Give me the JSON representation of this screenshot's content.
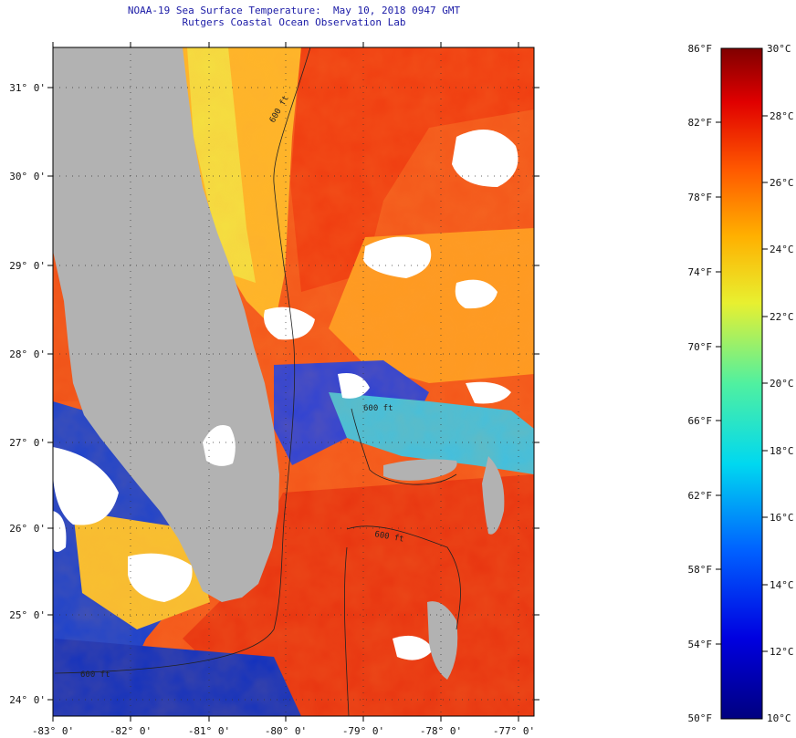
{
  "header": {
    "title_line1": "NOAA-19 Sea Surface Temperature:  May 10, 2018 0947 GMT",
    "title_line2": "Rutgers Coastal Ocean Observation Lab"
  },
  "map": {
    "lat_labels": [
      "31° 0'",
      "30° 0'",
      "29° 0'",
      "28° 0'",
      "27° 0'",
      "26° 0'",
      "25° 0'",
      "24° 0'"
    ],
    "lon_labels": [
      "-83° 0'",
      "-82° 0'",
      "-81° 0'",
      "-80° 0'",
      "-79° 0'",
      "-78° 0'",
      "-77° 0'"
    ],
    "contour_label": "600 ft",
    "colors": {
      "land": "#b2b2b2",
      "cloud": "#ffffff",
      "warm": "#f04a10",
      "mid": "#ffb020",
      "cool": "#2050e0"
    }
  },
  "colorbar": {
    "fahrenheit_labels": [
      "86°F",
      "82°F",
      "78°F",
      "74°F",
      "70°F",
      "66°F",
      "62°F",
      "58°F",
      "54°F",
      "50°F"
    ],
    "celsius_labels": [
      "30°C",
      "28°C",
      "26°C",
      "24°C",
      "22°C",
      "20°C",
      "18°C",
      "16°C",
      "14°C",
      "12°C",
      "10°C"
    ]
  }
}
